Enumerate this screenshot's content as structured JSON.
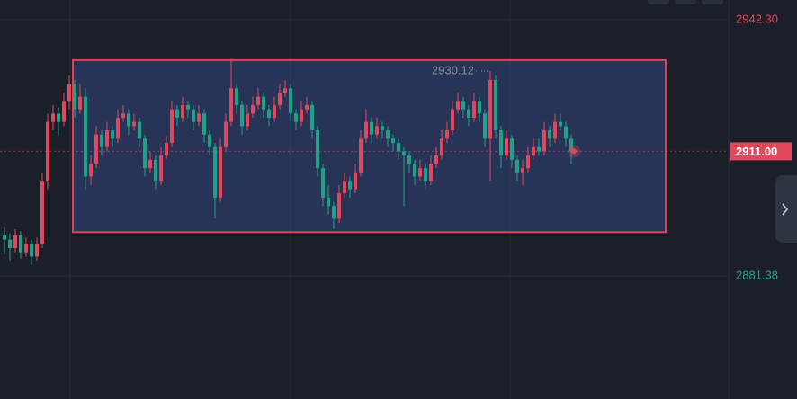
{
  "chart_data": {
    "type": "candlestick",
    "ylim": [
      2852.1,
      2947.0
    ],
    "yticks": [
      {
        "value": 2942.3,
        "label": "2942.30",
        "color": "#e2475b"
      },
      {
        "value": 2881.38,
        "label": "2881.38",
        "color": "#1fa187"
      }
    ],
    "current_price": {
      "value": 2911,
      "label": "2911.00",
      "color": "#e2475b"
    },
    "annotation": {
      "value": 2930.12,
      "label": "2930.12"
    },
    "rectangle": {
      "top": 2932.7,
      "bottom": 2891.8,
      "color": "#e0404f"
    },
    "up_color": "#e2475b",
    "down_color": "#1fa187",
    "candles": [
      [
        2891,
        2893,
        2886.5,
        2890
      ],
      [
        2890,
        2891.5,
        2885,
        2888
      ],
      [
        2888,
        2892.5,
        2887,
        2891
      ],
      [
        2891,
        2892,
        2885.5,
        2887
      ],
      [
        2887,
        2890.5,
        2886,
        2889
      ],
      [
        2889,
        2890,
        2884,
        2886
      ],
      [
        2886,
        2890.5,
        2885,
        2889
      ],
      [
        2889,
        2906,
        2888,
        2904
      ],
      [
        2904,
        2920,
        2902,
        2918
      ],
      [
        2918,
        2922,
        2916,
        2920
      ],
      [
        2920,
        2921.5,
        2915,
        2918
      ],
      [
        2918,
        2925,
        2917,
        2923
      ],
      [
        2923,
        2929,
        2921,
        2927
      ],
      [
        2927,
        2928,
        2919,
        2921
      ],
      [
        2921,
        2927,
        2920,
        2924
      ],
      [
        2924,
        2926,
        2902,
        2905
      ],
      [
        2905,
        2910,
        2903,
        2908
      ],
      [
        2908,
        2917,
        2907,
        2915
      ],
      [
        2915,
        2916,
        2910,
        2912
      ],
      [
        2912,
        2918,
        2911,
        2916
      ],
      [
        2916,
        2917,
        2912,
        2914
      ],
      [
        2914,
        2921,
        2913,
        2919
      ],
      [
        2919,
        2922,
        2918,
        2920
      ],
      [
        2920,
        2921,
        2915,
        2917
      ],
      [
        2917,
        2920,
        2916,
        2918
      ],
      [
        2918,
        2919,
        2912,
        2914
      ],
      [
        2914,
        2915,
        2905,
        2907
      ],
      [
        2907,
        2911,
        2906,
        2909
      ],
      [
        2909,
        2910,
        2902,
        2904
      ],
      [
        2904,
        2912,
        2903,
        2910
      ],
      [
        2910,
        2915,
        2909,
        2913
      ],
      [
        2913,
        2923,
        2912,
        2921
      ],
      [
        2921,
        2922,
        2917,
        2919
      ],
      [
        2919,
        2924,
        2918,
        2922
      ],
      [
        2922,
        2923,
        2919,
        2921
      ],
      [
        2921,
        2922,
        2916,
        2918
      ],
      [
        2918,
        2922,
        2917,
        2920
      ],
      [
        2920,
        2921,
        2913,
        2915
      ],
      [
        2915,
        2916,
        2910,
        2912
      ],
      [
        2912,
        2913,
        2895,
        2900
      ],
      [
        2900,
        2914,
        2899,
        2912
      ],
      [
        2912,
        2920,
        2911,
        2918
      ],
      [
        2918,
        2933,
        2917,
        2926
      ],
      [
        2926,
        2927,
        2920,
        2922
      ],
      [
        2922,
        2923,
        2915,
        2917
      ],
      [
        2917,
        2922,
        2916,
        2920
      ],
      [
        2920,
        2924,
        2919,
        2922
      ],
      [
        2922,
        2926,
        2921,
        2924
      ],
      [
        2924,
        2925,
        2919,
        2921
      ],
      [
        2921,
        2922,
        2917,
        2919
      ],
      [
        2919,
        2924,
        2918,
        2922
      ],
      [
        2922,
        2927,
        2921,
        2925
      ],
      [
        2925,
        2928,
        2924,
        2926
      ],
      [
        2926,
        2927,
        2918,
        2920
      ],
      [
        2920,
        2921,
        2916,
        2918
      ],
      [
        2918,
        2923,
        2917,
        2921
      ],
      [
        2921,
        2924,
        2920,
        2922
      ],
      [
        2922,
        2923,
        2914,
        2916
      ],
      [
        2916,
        2917,
        2905,
        2907
      ],
      [
        2907,
        2908,
        2898,
        2900
      ],
      [
        2900,
        2903,
        2896,
        2898
      ],
      [
        2898,
        2899,
        2892.5,
        2895
      ],
      [
        2895,
        2903,
        2894,
        2901
      ],
      [
        2901,
        2906,
        2900,
        2904
      ],
      [
        2904,
        2905,
        2900,
        2902
      ],
      [
        2902,
        2908,
        2901,
        2906
      ],
      [
        2906,
        2916,
        2905,
        2914
      ],
      [
        2914,
        2921,
        2913,
        2918
      ],
      [
        2918,
        2919,
        2913,
        2915
      ],
      [
        2915,
        2919,
        2914,
        2917
      ],
      [
        2917,
        2918,
        2914,
        2916
      ],
      [
        2916,
        2917,
        2912,
        2914
      ],
      [
        2914,
        2915,
        2911,
        2913
      ],
      [
        2913,
        2914,
        2909,
        2911
      ],
      [
        2911,
        2912,
        2898,
        2910
      ],
      [
        2910,
        2911,
        2906,
        2908
      ],
      [
        2908,
        2909,
        2903,
        2905
      ],
      [
        2905,
        2909,
        2904,
        2907
      ],
      [
        2907,
        2908,
        2902,
        2904
      ],
      [
        2904,
        2910,
        2903,
        2908
      ],
      [
        2908,
        2912,
        2907,
        2910
      ],
      [
        2910,
        2916,
        2909,
        2914
      ],
      [
        2914,
        2918,
        2913,
        2916
      ],
      [
        2916,
        2923,
        2915,
        2921
      ],
      [
        2921,
        2925,
        2920,
        2923
      ],
      [
        2923,
        2924,
        2919,
        2921
      ],
      [
        2921,
        2922,
        2917,
        2919
      ],
      [
        2919,
        2925,
        2918,
        2923
      ],
      [
        2923,
        2924,
        2918,
        2920
      ],
      [
        2920,
        2921,
        2912,
        2914
      ],
      [
        2914,
        2930.12,
        2904,
        2928
      ],
      [
        2928,
        2929,
        2914,
        2916
      ],
      [
        2916,
        2917,
        2907,
        2910
      ],
      [
        2910,
        2916,
        2909,
        2914
      ],
      [
        2914,
        2915,
        2907,
        2909
      ],
      [
        2909,
        2910,
        2904,
        2906
      ],
      [
        2906,
        2909,
        2903,
        2907
      ],
      [
        2907,
        2912,
        2906,
        2910
      ],
      [
        2910,
        2914,
        2909,
        2912
      ],
      [
        2912,
        2914,
        2910,
        2911
      ],
      [
        2911,
        2918,
        2910,
        2916
      ],
      [
        2916,
        2917,
        2912,
        2914
      ],
      [
        2914,
        2920,
        2913,
        2918
      ],
      [
        2918,
        2920,
        2916,
        2917
      ],
      [
        2917,
        2918,
        2912,
        2914
      ],
      [
        2914,
        2915,
        2908,
        2911
      ]
    ]
  }
}
